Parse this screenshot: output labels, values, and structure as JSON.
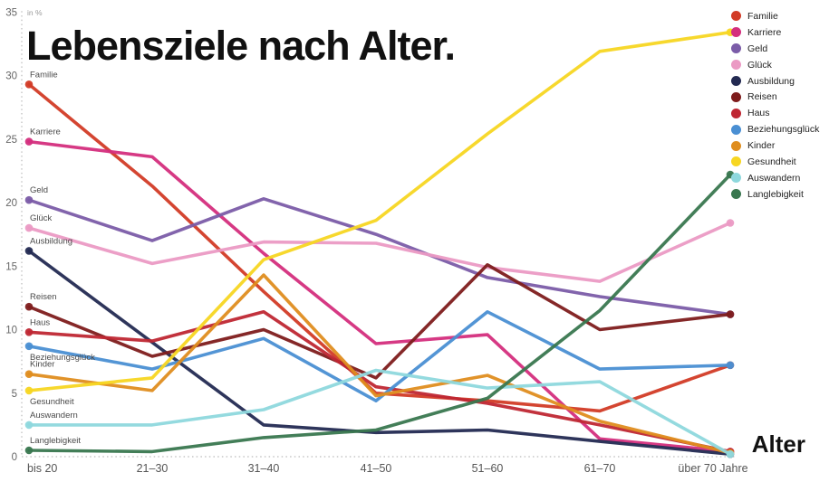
{
  "title": "Lebensziele nach Alter.",
  "unit_label": "in %",
  "x_axis_title": "Alter",
  "colors": {
    "title_text": "#111111",
    "axis_dots": "#c5c5c5",
    "tick_text": "#666666",
    "series_label_text": "#4a4a4a"
  },
  "chart_data": {
    "type": "line",
    "title": "Lebensziele nach Alter.",
    "ylabel": "in %",
    "xlabel": "Alter",
    "categories": [
      "bis 20",
      "21–30",
      "31–40",
      "41–50",
      "51–60",
      "61–70",
      "über 70 Jahre"
    ],
    "ylim": [
      0,
      35
    ],
    "yticks": [
      0,
      5,
      10,
      15,
      20,
      25,
      30,
      35
    ],
    "grid": "dotted-axis-lines-only",
    "legend_position": "top-right",
    "series": [
      {
        "name": "Familie",
        "color": "#d23b26",
        "label_below": false,
        "values": [
          29.3,
          21.3,
          13.0,
          5.0,
          4.4,
          3.6,
          7.2
        ]
      },
      {
        "name": "Karriere",
        "color": "#d42e7d",
        "label_below": false,
        "values": [
          24.8,
          23.6,
          16.0,
          8.9,
          9.6,
          1.4,
          0.4
        ]
      },
      {
        "name": "Geld",
        "color": "#7b5ca8",
        "label_below": false,
        "values": [
          20.2,
          17.0,
          20.3,
          17.5,
          14.1,
          12.6,
          11.2
        ]
      },
      {
        "name": "Glück",
        "color": "#eb9ac4",
        "label_below": false,
        "values": [
          18.0,
          15.2,
          16.9,
          16.8,
          14.9,
          13.8,
          18.4
        ]
      },
      {
        "name": "Ausbildung",
        "color": "#232a52",
        "label_below": false,
        "values": [
          16.2,
          9.0,
          2.5,
          1.9,
          2.1,
          1.2,
          0.2
        ]
      },
      {
        "name": "Reisen",
        "color": "#7e1c1c",
        "label_below": false,
        "values": [
          11.8,
          7.9,
          10.0,
          6.2,
          15.1,
          10.0,
          11.2
        ]
      },
      {
        "name": "Haus",
        "color": "#bf2733",
        "label_below": false,
        "values": [
          9.8,
          9.1,
          11.4,
          5.5,
          4.2,
          2.5,
          0.4
        ]
      },
      {
        "name": "Beziehungsglück",
        "color": "#4a8fd3",
        "label_below": true,
        "values": [
          8.7,
          6.9,
          9.3,
          4.4,
          11.4,
          6.9,
          7.2
        ]
      },
      {
        "name": "Kinder",
        "color": "#df8d1f",
        "label_below": false,
        "values": [
          6.5,
          5.2,
          14.3,
          4.8,
          6.4,
          2.8,
          0.3
        ]
      },
      {
        "name": "Gesundheit",
        "color": "#f7d622",
        "label_below": true,
        "values": [
          5.2,
          6.2,
          15.5,
          18.6,
          25.4,
          31.9,
          33.4
        ]
      },
      {
        "name": "Auswandern",
        "color": "#8ed8dd",
        "label_below": false,
        "values": [
          2.5,
          2.5,
          3.7,
          6.8,
          5.4,
          5.9,
          0.2
        ]
      },
      {
        "name": "Langlebigkeit",
        "color": "#39774f",
        "label_below": false,
        "values": [
          0.5,
          0.4,
          1.5,
          2.1,
          4.6,
          11.5,
          22.2
        ]
      }
    ]
  }
}
